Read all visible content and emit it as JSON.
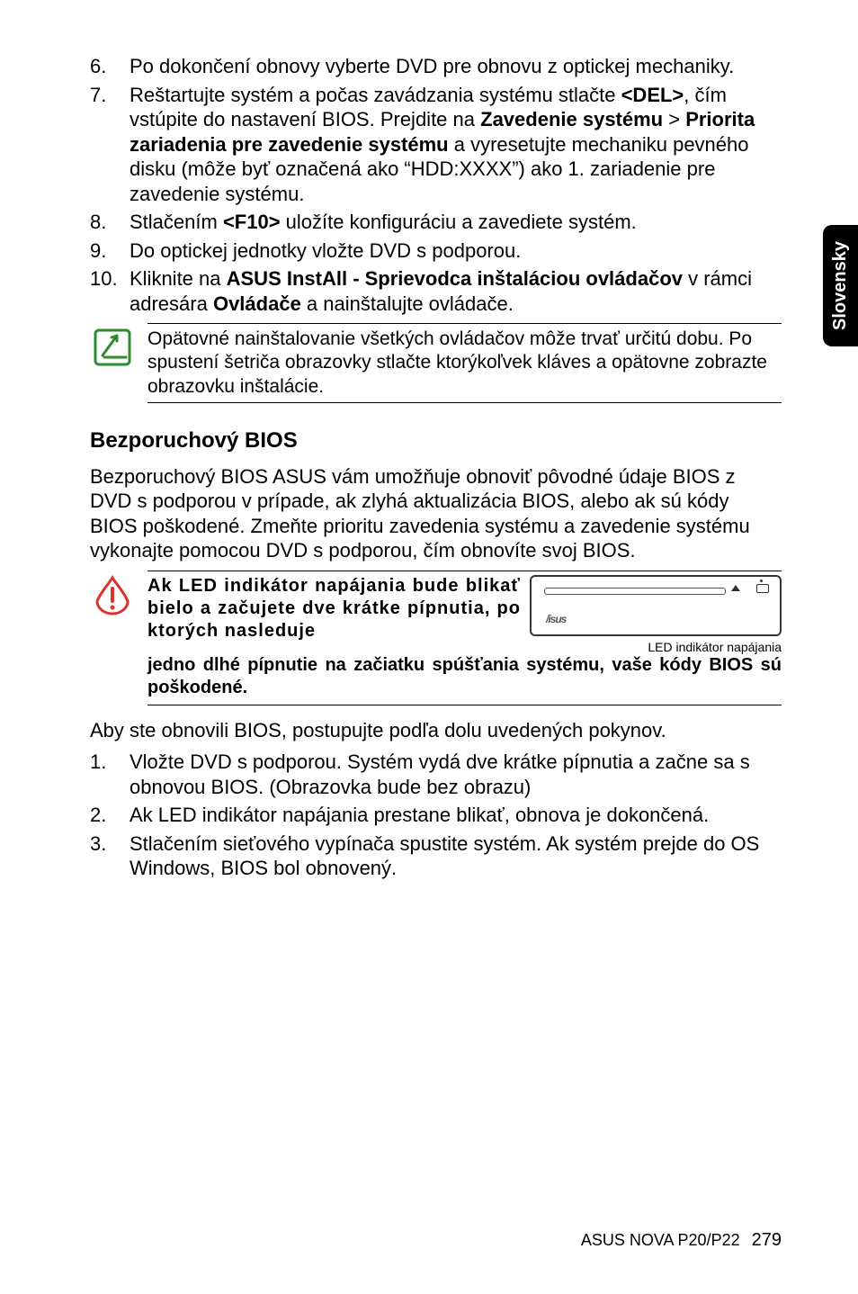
{
  "side_tab": "Slovensky",
  "list_top": [
    {
      "n": "6.",
      "html": "Po dokončení obnovy vyberte DVD pre obnovu z optickej mechaniky."
    },
    {
      "n": "7.",
      "html": "Reštartujte systém a počas zavádzania systému stlačte <span class=\"bold\">&lt;DEL&gt;</span>, čím vstúpite do nastavení BIOS. Prejdite na <span class=\"bold\">Zavedenie systému</span> &gt; <span class=\"bold\">Priorita zariadenia pre zavedenie systému</span> a vyresetujte mechaniku pevného disku (môže byť označená ako “HDD:XXXX”) ako 1. zariadenie pre zavedenie systému."
    },
    {
      "n": "8.",
      "html": "Stlačením <span class=\"bold\">&lt;F10&gt;</span> uložíte konfiguráciu a zavediete systém."
    },
    {
      "n": "9.",
      "html": "Do optickej jednotky vložte DVD s podporou."
    },
    {
      "n": "10.",
      "html": "Kliknite na <span class=\"bold\">ASUS InstAll - Sprievodca inštaláciou ovládačov</span> v rámci adresára <span class=\"bold\">Ovládače</span> a nainštalujte ovládače."
    }
  ],
  "note1": "Opätovné nainštalovanie všetkých ovládačov môže trvať určitú dobu. Po spustení šetriča obrazovky stlačte ktorýkoľvek kláves a opätovne zobrazte obrazovku inštalácie.",
  "section_title": "Bezporuchový BIOS",
  "section_para": "Bezporuchový BIOS ASUS vám umožňuje obnoviť pôvodné údaje BIOS z DVD s podporou v prípade, ak zlyhá aktualizácia BIOS, alebo ak sú kódy BIOS poškodené. Zmeňte prioritu zavedenia systému a zavedenie systému vykonajte pomocou DVD s podporou, čím obnovíte svoj BIOS.",
  "warn_left": "Ak LED indikátor napájania bude blikať bielo a začujete dve krátke pípnutia, po ktorých nasleduje",
  "warn_caption": "LED indikátor napájania",
  "warn_continue": "jedno dlhé pípnutie na začiatku spúšťania systému, vaše kódy BIOS sú poškodené.",
  "device_logo": "/isus",
  "para_after": "Aby ste obnovili BIOS, postupujte podľa dolu uvedených pokynov.",
  "list_bottom": [
    {
      "n": "1.",
      "html": "Vložte DVD s podporou. Systém vydá dve krátke pípnutia a začne sa s obnovou BIOS. (Obrazovka bude bez obrazu)"
    },
    {
      "n": "2.",
      "html": "Ak LED indikátor napájania prestane blikať, obnova je dokončená."
    },
    {
      "n": "3.",
      "html": "Stlačením sieťového vypínača spustite systém. Ak systém prejde do OS Windows, BIOS bol obnovený."
    }
  ],
  "footer_text": "ASUS NOVA P20/P22",
  "footer_page": "279",
  "colors": {
    "note_icon": "#2e8b2e",
    "warn_icon": "#d9332b"
  }
}
